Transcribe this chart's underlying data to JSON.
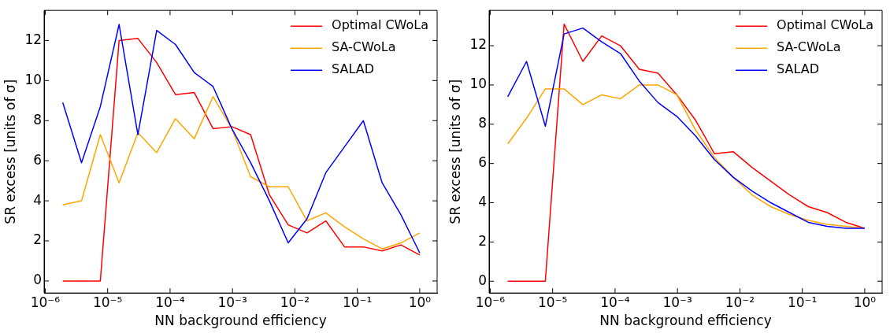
{
  "chart_data": [
    {
      "type": "line",
      "xlabel": "NN background efficiency",
      "ylabel": "SR excess [units of σ]",
      "log": "x",
      "legend": "top right",
      "grid": false,
      "x": [
        1.9073e-06,
        3.8147e-06,
        7.6294e-06,
        1.5259e-05,
        3.0518e-05,
        6.1035e-05,
        0.00012207,
        0.00024414,
        0.00048828,
        0.00097656,
        0.0019531,
        0.0039063,
        0.0078125,
        0.015625,
        0.03125,
        0.0625,
        0.125,
        0.25,
        0.5,
        1
      ],
      "xlim": [
        9.6e-07,
        1.9
      ],
      "xticks": [
        {
          "value": 1e-06,
          "label": "10⁻⁶"
        },
        {
          "value": 1e-05,
          "label": "10⁻⁵"
        },
        {
          "value": 0.0001,
          "label": "10⁻⁴"
        },
        {
          "value": 0.001,
          "label": "10⁻³"
        },
        {
          "value": 0.01,
          "label": "10⁻²"
        },
        {
          "value": 0.1,
          "label": "10⁻¹"
        },
        {
          "value": 1,
          "label": "10⁰"
        }
      ],
      "ylim": [
        -0.6,
        13.5
      ],
      "yticks": [
        0,
        2,
        4,
        6,
        8,
        10,
        12
      ],
      "series": [
        {
          "name": "Optimal CWoLa",
          "color": "#ff0000",
          "values": [
            0,
            0,
            0,
            12.0,
            12.1,
            10.9,
            9.3,
            9.4,
            7.6,
            7.7,
            7.3,
            4.3,
            2.8,
            2.4,
            3.0,
            1.7,
            1.7,
            1.5,
            1.8,
            1.3
          ]
        },
        {
          "name": "SA-CWoLa",
          "color": "#ffa500",
          "values": [
            3.8,
            4.0,
            7.3,
            4.9,
            7.4,
            6.4,
            8.1,
            7.1,
            9.2,
            7.6,
            5.2,
            4.7,
            4.7,
            3.0,
            3.4,
            2.7,
            2.1,
            1.6,
            1.9,
            2.4
          ]
        },
        {
          "name": "SALAD",
          "color": "#0000ff",
          "values": [
            8.9,
            5.9,
            8.7,
            12.8,
            7.3,
            12.5,
            11.8,
            10.4,
            9.7,
            7.6,
            5.9,
            4.0,
            1.9,
            3.1,
            5.4,
            6.7,
            8.0,
            4.9,
            3.3,
            1.4
          ]
        }
      ]
    },
    {
      "type": "line",
      "xlabel": "NN background efficiency",
      "ylabel": "SR excess [units of σ]",
      "log": "x",
      "legend": "top right",
      "grid": false,
      "x": [
        1.9073e-06,
        3.8147e-06,
        7.6294e-06,
        1.5259e-05,
        3.0518e-05,
        6.1035e-05,
        0.00012207,
        0.00024414,
        0.00048828,
        0.00097656,
        0.0019531,
        0.0039063,
        0.0078125,
        0.015625,
        0.03125,
        0.0625,
        0.125,
        0.25,
        0.5,
        1
      ],
      "xlim": [
        9.6e-07,
        1.9
      ],
      "xticks": [
        {
          "value": 1e-06,
          "label": "10⁻⁶"
        },
        {
          "value": 1e-05,
          "label": "10⁻⁵"
        },
        {
          "value": 0.0001,
          "label": "10⁻⁴"
        },
        {
          "value": 0.001,
          "label": "10⁻³"
        },
        {
          "value": 0.01,
          "label": "10⁻²"
        },
        {
          "value": 0.1,
          "label": "10⁻¹"
        },
        {
          "value": 1,
          "label": "10⁰"
        }
      ],
      "ylim": [
        -0.6,
        13.8
      ],
      "yticks": [
        0,
        2,
        4,
        6,
        8,
        10,
        12
      ],
      "series": [
        {
          "name": "Optimal CWoLa",
          "color": "#ff0000",
          "values": [
            0,
            0,
            0,
            13.1,
            11.2,
            12.5,
            12.0,
            10.8,
            10.6,
            9.5,
            8.2,
            6.5,
            6.6,
            5.8,
            5.1,
            4.4,
            3.8,
            3.5,
            3.0,
            2.7
          ]
        },
        {
          "name": "SA-CWoLa",
          "color": "#ffa500",
          "values": [
            7.0,
            8.3,
            9.8,
            9.8,
            9.0,
            9.5,
            9.3,
            10.0,
            10.0,
            9.5,
            7.7,
            6.3,
            5.3,
            4.4,
            3.8,
            3.4,
            3.1,
            2.9,
            2.8,
            2.7
          ]
        },
        {
          "name": "SALAD",
          "color": "#0000ff",
          "values": [
            9.4,
            11.2,
            7.9,
            12.6,
            12.9,
            12.2,
            11.6,
            10.2,
            9.1,
            8.4,
            7.4,
            6.2,
            5.3,
            4.6,
            4.0,
            3.5,
            3.0,
            2.8,
            2.7,
            2.7
          ]
        }
      ]
    }
  ]
}
